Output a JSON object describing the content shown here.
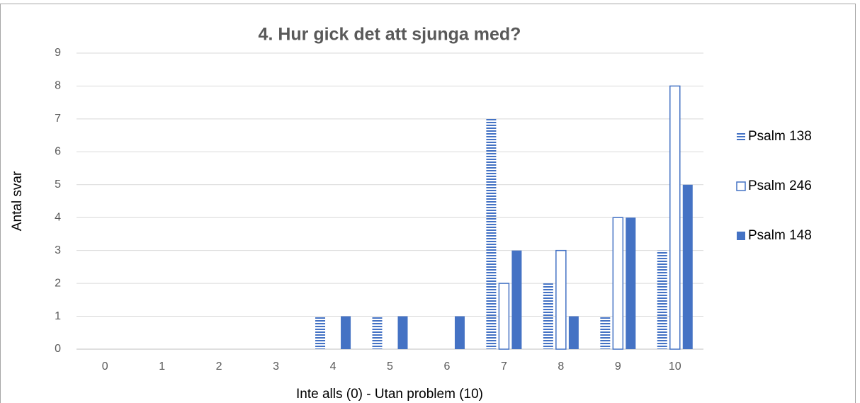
{
  "chart_data": {
    "type": "bar",
    "title": "4. Hur gick det att sjunga med?",
    "x_label": "Inte alls (0) - Utan problem (10)",
    "y_label": "Antal svar",
    "categories": [
      "0",
      "1",
      "2",
      "3",
      "4",
      "5",
      "6",
      "7",
      "8",
      "9",
      "10"
    ],
    "series": [
      {
        "name": "Psalm 138",
        "color": "#4472c4",
        "fill_style": "striped",
        "values": [
          0,
          0,
          0,
          0,
          1,
          1,
          0,
          7,
          2,
          1,
          3
        ]
      },
      {
        "name": "Psalm 246",
        "color": "#4472c4",
        "fill_style": "outline",
        "values": [
          0,
          0,
          0,
          0,
          0,
          0,
          0,
          2,
          3,
          4,
          8
        ]
      },
      {
        "name": "Psalm 148",
        "color": "#4472c4",
        "fill_style": "solid",
        "values": [
          0,
          0,
          0,
          0,
          1,
          1,
          1,
          3,
          1,
          4,
          5
        ]
      }
    ],
    "ylim": [
      0,
      9
    ],
    "yticks": [
      0,
      1,
      2,
      3,
      4,
      5,
      6,
      7,
      8,
      9
    ],
    "grid": true,
    "legend": "right"
  }
}
